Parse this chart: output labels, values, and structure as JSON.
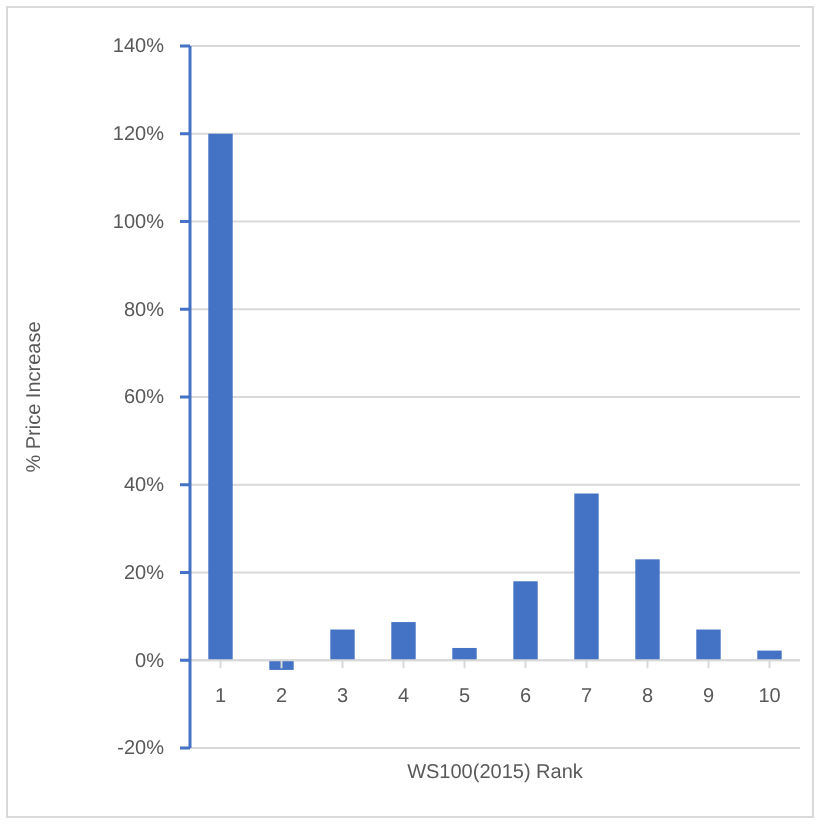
{
  "chart_data": {
    "type": "bar",
    "xlabel": "WS100(2015) Rank",
    "ylabel": "% Price  Increase",
    "categories": [
      "1",
      "2",
      "3",
      "4",
      "5",
      "6",
      "7",
      "8",
      "9",
      "10"
    ],
    "values": [
      120,
      -2.2,
      7,
      8.7,
      2.8,
      18,
      38,
      23,
      7,
      2.2
    ],
    "color": "#4472c4",
    "ylim": [
      -20,
      140
    ],
    "yticks": [
      {
        "value": -20,
        "label": "-20%"
      },
      {
        "value": 0,
        "label": "0%"
      },
      {
        "value": 20,
        "label": "20%"
      },
      {
        "value": 40,
        "label": "40%"
      },
      {
        "value": 60,
        "label": "60%"
      },
      {
        "value": 80,
        "label": "80%"
      },
      {
        "value": 100,
        "label": "100%"
      },
      {
        "value": 120,
        "label": "120%"
      },
      {
        "value": 140,
        "label": "140%"
      }
    ],
    "grid": "y"
  }
}
